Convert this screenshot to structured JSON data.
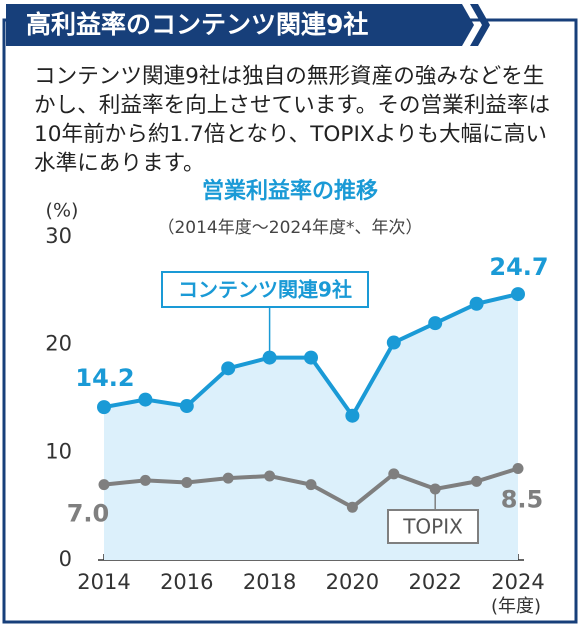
{
  "header": {
    "title": "高利益率のコンテンツ関連9社"
  },
  "body": {
    "text": "コンテンツ関連9社は独自の無形資産の強みなどを生かし、利益率を向上させています。その営業利益率は10年前から約1.7倍となり、TOPIXよりも大幅に高い水準にあります。"
  },
  "chart_data": {
    "type": "line",
    "title": "営業利益率の推移",
    "subtitle": "（2014年度～2024年度*、年次）",
    "y_label": "(%)",
    "x_label": "(年度)",
    "x": [
      2014,
      2015,
      2016,
      2017,
      2018,
      2019,
      2020,
      2021,
      2022,
      2023,
      2024
    ],
    "xlim": [
      2014,
      2024
    ],
    "xticks": [
      2014,
      2016,
      2018,
      2020,
      2022,
      2024
    ],
    "ylim": [
      0,
      30
    ],
    "yticks": [
      0,
      10,
      20,
      30
    ],
    "grid": false,
    "series": [
      {
        "name": "コンテンツ関連9社",
        "color": "#1a9ad6",
        "fill": "#dcf0fb",
        "values": [
          14.2,
          14.9,
          14.3,
          17.8,
          18.8,
          18.8,
          13.4,
          20.2,
          22.0,
          23.8,
          24.7
        ],
        "value_labels": [
          "14.2",
          null,
          null,
          null,
          null,
          null,
          null,
          null,
          null,
          null,
          "24.7"
        ]
      },
      {
        "name": "TOPIX",
        "color": "#7f7f7f",
        "values": [
          7.0,
          7.4,
          7.2,
          7.6,
          7.8,
          7.0,
          4.9,
          8.0,
          6.6,
          7.3,
          8.5
        ],
        "value_labels": [
          "7.0",
          null,
          null,
          null,
          null,
          null,
          null,
          null,
          null,
          null,
          "8.5"
        ]
      }
    ]
  }
}
